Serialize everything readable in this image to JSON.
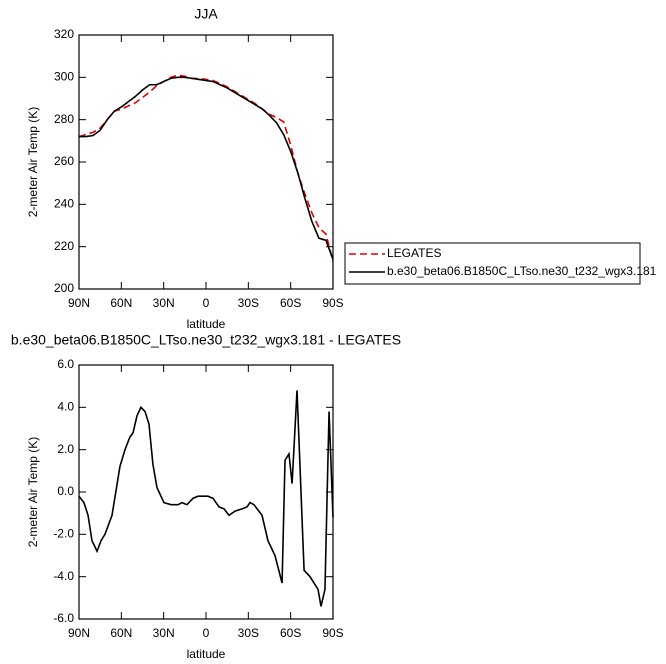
{
  "chart_data": [
    {
      "type": "line",
      "title": "JJA",
      "xlabel": "latitude",
      "ylabel": "2-meter Air Temp (K)",
      "x": [
        90,
        85,
        80,
        75,
        70,
        65,
        60,
        55,
        50,
        45,
        40,
        35,
        30,
        25,
        20,
        15,
        10,
        5,
        0,
        -5,
        -10,
        -15,
        -20,
        -25,
        -30,
        -35,
        -40,
        -45,
        -50,
        -55,
        -60,
        -65,
        -70,
        -75,
        -80,
        -85,
        -90
      ],
      "xlim": [
        90,
        -90
      ],
      "xticks": [
        {
          "value": 90,
          "label": "90N"
        },
        {
          "value": 60,
          "label": "60N"
        },
        {
          "value": 30,
          "label": "30N"
        },
        0,
        {
          "value": -30,
          "label": "30S"
        },
        {
          "value": -60,
          "label": "60S"
        },
        {
          "value": -90,
          "label": "90S"
        }
      ],
      "ylim": [
        200,
        320
      ],
      "yticks": [
        200,
        220,
        240,
        260,
        280,
        300,
        320
      ],
      "legend": "outside-right",
      "series": [
        {
          "name": "LEGATES",
          "color": "#e00000",
          "dashed": true,
          "values": [
            272,
            273,
            274,
            276,
            280,
            284,
            285,
            286.5,
            288,
            290.5,
            293,
            296,
            298,
            300,
            301,
            300.5,
            299.5,
            299.5,
            299,
            298.5,
            297,
            295.5,
            293.5,
            291.5,
            289.5,
            287.5,
            285,
            282.5,
            281,
            279,
            268,
            255,
            245,
            236,
            229,
            226,
            213
          ]
        },
        {
          "name": "b.e30_beta06.B1850C_LTso.ne30_t232_wgx3.181",
          "color": "#000000",
          "dashed": false,
          "values": [
            272,
            272,
            272.5,
            275,
            280,
            284,
            286,
            288.5,
            291,
            294,
            296.5,
            296.5,
            298,
            299.5,
            300,
            300,
            299.5,
            299,
            298.5,
            298,
            296.5,
            295,
            293,
            291,
            289,
            287,
            285,
            282,
            278.5,
            273,
            265,
            255,
            243,
            232,
            224,
            223,
            214
          ]
        }
      ]
    },
    {
      "type": "line",
      "title": "b.e30_beta06.B1850C_LTso.ne30_t232_wgx3.181 - LEGATES",
      "xlabel": "latitude",
      "ylabel": "2-meter Air Temp (K)",
      "x": [
        90,
        86.5,
        83.6,
        80.8,
        77.2,
        74.4,
        71.6,
        66.6,
        61,
        57.4,
        53.9,
        51.7,
        48.9,
        46.1,
        43.2,
        40.4,
        37.6,
        34.7,
        29.8,
        24.8,
        19.8,
        17,
        13.5,
        9.2,
        5.7,
        2.1,
        -1.4,
        -5,
        -9.2,
        -12.8,
        -16.3,
        -20.6,
        -25.5,
        -29.1,
        -31.2,
        -34,
        -39.7,
        -43.9,
        -48.9,
        -53.9,
        -56,
        -58.8,
        -61,
        -64.5,
        -69.5,
        -73.7,
        -79.4,
        -81.5,
        -84.3,
        -87.2,
        -90
      ],
      "xlim": [
        90,
        -90
      ],
      "xticks": [
        {
          "value": 90,
          "label": "90N"
        },
        {
          "value": 60,
          "label": "60N"
        },
        {
          "value": 30,
          "label": "30N"
        },
        0,
        {
          "value": -30,
          "label": "30S"
        },
        {
          "value": -60,
          "label": "60S"
        },
        {
          "value": -90,
          "label": "90S"
        }
      ],
      "ylim": [
        -6,
        6
      ],
      "yticks": [
        {
          "value": -6,
          "label": "-6.0"
        },
        {
          "value": -4,
          "label": "-4.0"
        },
        {
          "value": -2,
          "label": "-2.0"
        },
        {
          "value": 0,
          "label": "0.0"
        },
        {
          "value": 2,
          "label": "2.0"
        },
        {
          "value": 4,
          "label": "4.0"
        },
        {
          "value": 6,
          "label": "6.0"
        }
      ],
      "series": [
        {
          "color": "#000000",
          "dashed": false,
          "values": [
            -0.2,
            -0.5,
            -1.1,
            -2.3,
            -2.8,
            -2.3,
            -2.0,
            -1.1,
            1.2,
            2.0,
            2.6,
            2.8,
            3.6,
            4.0,
            3.8,
            3.2,
            1.3,
            0.2,
            -0.5,
            -0.6,
            -0.6,
            -0.5,
            -0.6,
            -0.3,
            -0.2,
            -0.2,
            -0.2,
            -0.3,
            -0.7,
            -0.8,
            -1.1,
            -0.9,
            -0.8,
            -0.7,
            -0.5,
            -0.6,
            -1.1,
            -2.3,
            -3.0,
            -4.3,
            1.5,
            1.8,
            0.4,
            4.8,
            -3.7,
            -4.0,
            -4.6,
            -5.4,
            -4.6,
            3.8,
            -1.2
          ]
        }
      ]
    }
  ]
}
